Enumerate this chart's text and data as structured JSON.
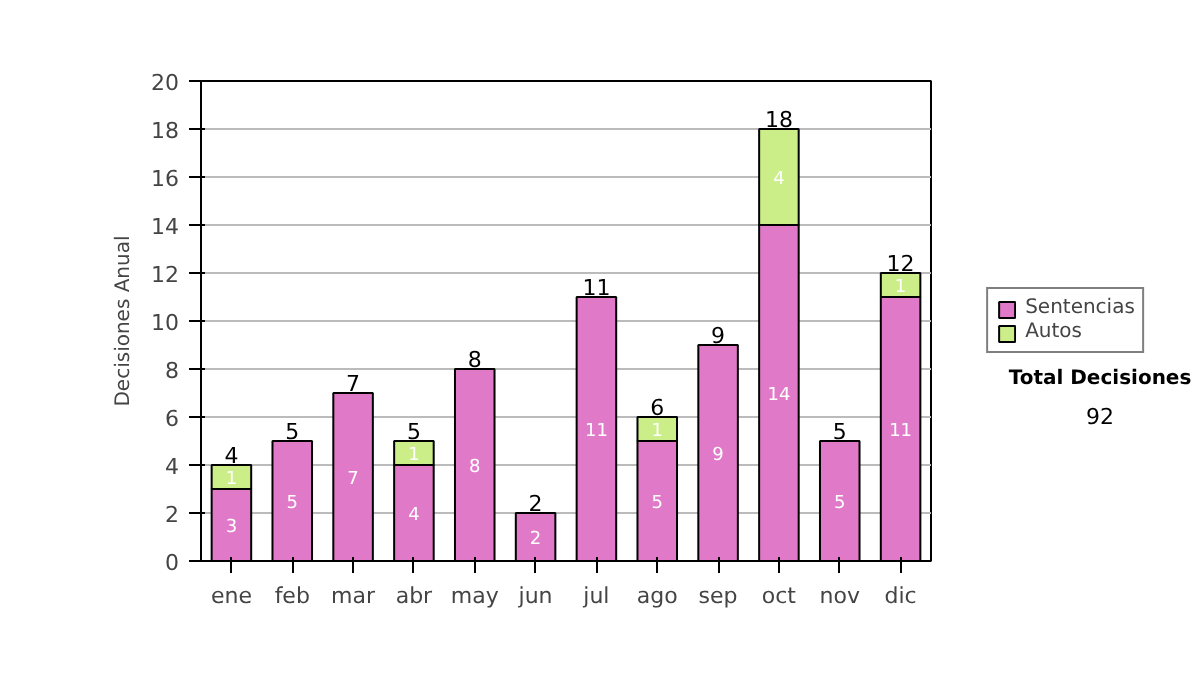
{
  "chart_data": {
    "type": "bar",
    "stacked": true,
    "ylabel": "Decisiones Anual",
    "categories": [
      "ene",
      "feb",
      "mar",
      "abr",
      "may",
      "jun",
      "jul",
      "ago",
      "sep",
      "oct",
      "nov",
      "dic"
    ],
    "series": [
      {
        "name": "Sentencias",
        "color": "#e07ac8",
        "values": [
          3,
          5,
          7,
          4,
          8,
          2,
          11,
          5,
          9,
          14,
          5,
          11
        ]
      },
      {
        "name": "Autos",
        "color": "#ccee88",
        "values": [
          1,
          null,
          null,
          1,
          null,
          null,
          null,
          1,
          null,
          4,
          null,
          1
        ]
      }
    ],
    "totals": [
      "4",
      "5",
      "7",
      "5",
      "8",
      "2",
      "11",
      "6",
      "9",
      "18",
      "5",
      "12"
    ],
    "data_labels": true,
    "ylim": [
      0,
      20
    ],
    "yticks": [
      0,
      2,
      4,
      6,
      8,
      10,
      12,
      14,
      16,
      18,
      20
    ],
    "grid": "y",
    "legend": "right",
    "annotations": [
      "Total Decisiones",
      "92"
    ]
  }
}
